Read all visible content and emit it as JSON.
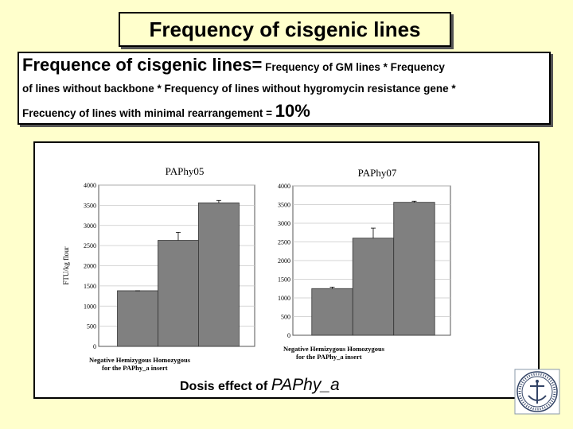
{
  "slide": {
    "title": "Frequency of cisgenic lines",
    "formula": {
      "lead": "Frequence of cisgenic lines=",
      "part1": " Frequency of GM lines * Frequency",
      "part2": "of lines without backbone * Frequency of lines without hygromycin resistance  gene *",
      "part3": "Frecuency of lines with minimal rearrangement = ",
      "result": "10%"
    },
    "caption_prefix": "Dosis effect of ",
    "caption_term": "PAPhy_a",
    "logo_icon": "university-seal-icon"
  },
  "colors": {
    "background": "#FFFFCC",
    "bar": "#808080"
  },
  "chart_data": [
    {
      "type": "bar",
      "title": "PAPhy05",
      "ylabel": "FTU/kg flour",
      "xlabel_line1": "Negative Hemizygous Homozygous",
      "xlabel_line2": "for the PAPhy_a insert",
      "categories": [
        "Negative",
        "Hemizygous",
        "Homozygous"
      ],
      "values": [
        1380,
        2630,
        3560
      ],
      "errors": [
        0,
        200,
        60
      ],
      "ylim": [
        0,
        4000
      ],
      "yticks": [
        "0",
        "500",
        "1000",
        "1500",
        "2000",
        "2500",
        "3000",
        "3500",
        "4000"
      ]
    },
    {
      "type": "bar",
      "title": "PAPhy07",
      "categories": [
        "Negative",
        "Hemizygous",
        "Homozygous"
      ],
      "xlabel_line1": "Negative Hemizygous Homozygous",
      "xlabel_line2": "for the PAPhy_a insert",
      "values": [
        1250,
        2600,
        3560
      ],
      "errors": [
        40,
        270,
        30
      ],
      "ylim": [
        0,
        4000
      ],
      "yticks": [
        "0",
        "500",
        "1000",
        "1500",
        "2000",
        "2500",
        "3000",
        "3500",
        "4000"
      ]
    }
  ]
}
